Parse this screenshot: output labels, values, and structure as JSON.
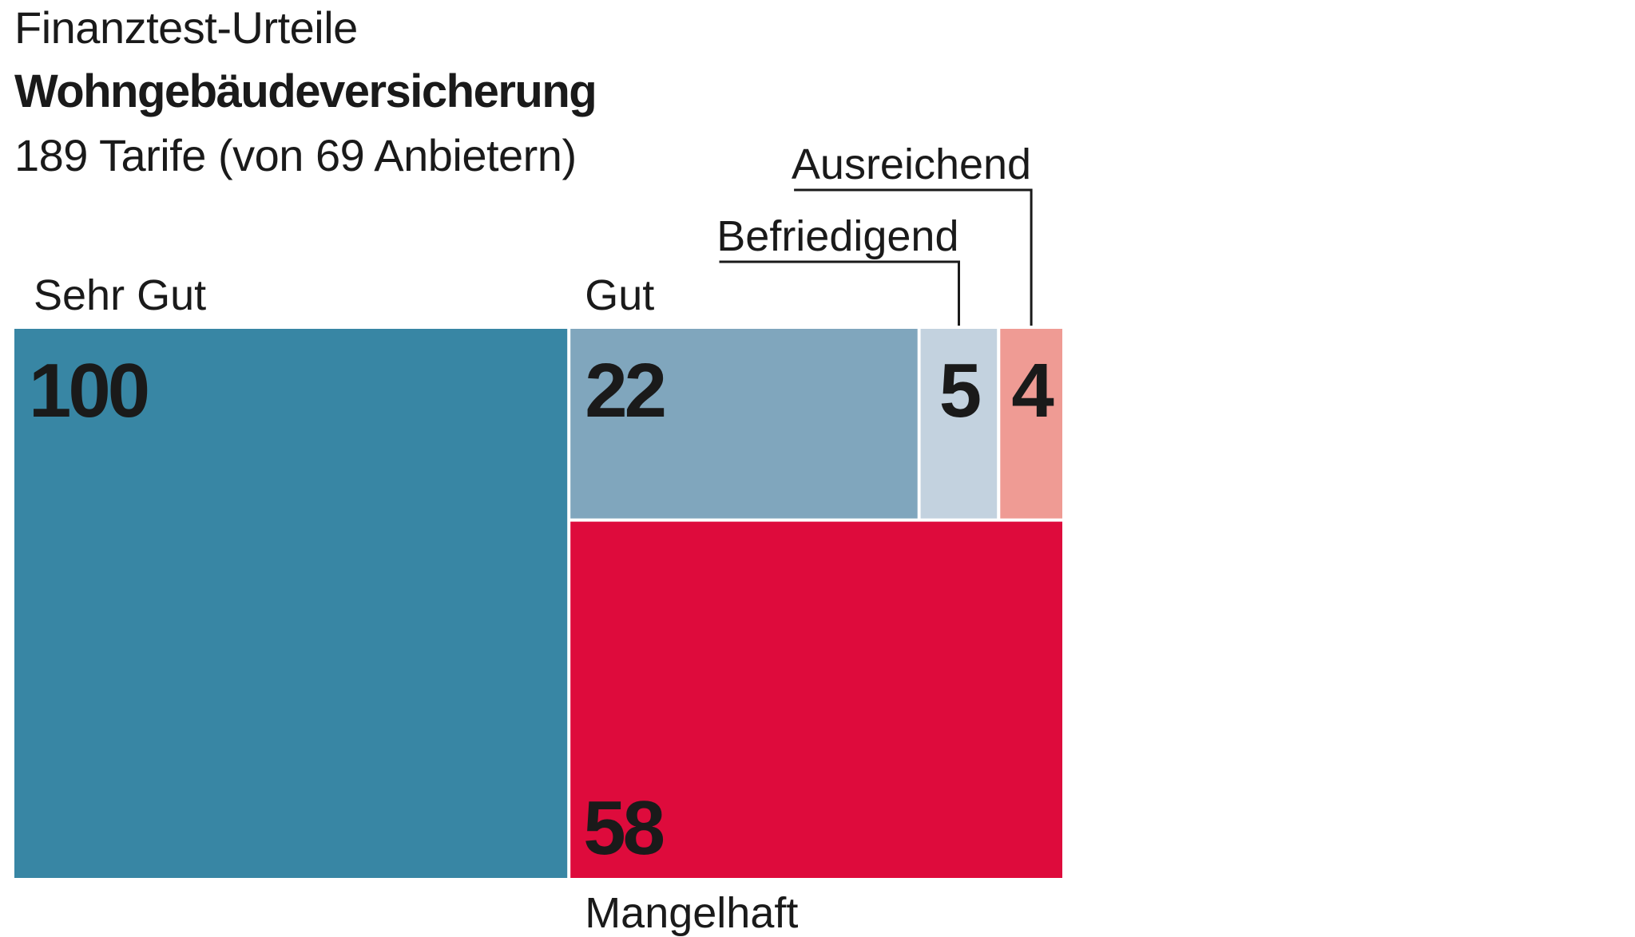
{
  "header": {
    "kicker": "Finanztest-Urteile",
    "title": "Wohngebäudeversicherung",
    "subtitle": "189 Tarife (von 69 Anbietern)"
  },
  "chart_data": {
    "type": "treemap",
    "title": "Wohngebäudeversicherung",
    "subtitle": "189 Tarife (von 69 Anbietern)",
    "total": 189,
    "items": [
      {
        "name": "Sehr Gut",
        "value": 100,
        "color": "#3886a4"
      },
      {
        "name": "Gut",
        "value": 22,
        "color": "#80a6bd"
      },
      {
        "name": "Befriedigend",
        "value": 5,
        "color": "#c3d2df"
      },
      {
        "name": "Ausreichend",
        "value": 4,
        "color": "#ef9b94"
      },
      {
        "name": "Mangelhaft",
        "value": 58,
        "color": "#de0b3c"
      }
    ]
  }
}
